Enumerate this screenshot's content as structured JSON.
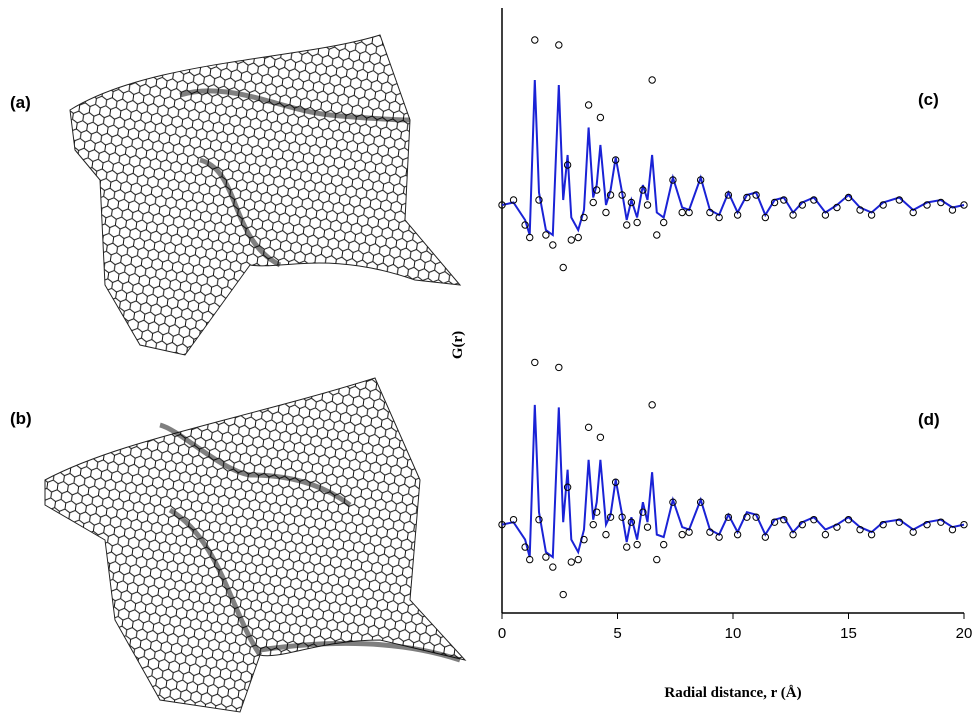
{
  "panels": [
    {
      "label": "(a)"
    },
    {
      "label": "(b)"
    }
  ],
  "chart_data": [
    {
      "type": "line",
      "label": "(c)",
      "ylabel": "G(r)",
      "x": [
        0,
        0.5,
        1,
        1.2,
        1.42,
        1.6,
        1.9,
        2.2,
        2.46,
        2.65,
        2.84,
        3.0,
        3.3,
        3.55,
        3.75,
        3.95,
        4.1,
        4.26,
        4.5,
        4.7,
        4.92,
        5.2,
        5.4,
        5.6,
        5.85,
        6.1,
        6.3,
        6.5,
        6.7,
        7.0,
        7.4,
        7.8,
        8.1,
        8.6,
        9.0,
        9.4,
        9.8,
        10.2,
        10.6,
        11.0,
        11.4,
        11.8,
        12.2,
        12.6,
        13.0,
        13.5,
        14.0,
        14.5,
        15.0,
        15.5,
        16.0,
        16.5,
        17.2,
        17.8,
        18.4,
        19.0,
        19.5,
        20.0
      ],
      "series": [
        {
          "style": "line",
          "color": "#1a22d6",
          "values": [
            0,
            0.1,
            -0.6,
            -1.2,
            5.0,
            0.5,
            -1.0,
            -1.2,
            4.8,
            0.2,
            2.0,
            -0.5,
            -1.0,
            -0.2,
            3.1,
            0.3,
            0.8,
            2.4,
            0.0,
            0.6,
            1.9,
            0.5,
            -0.6,
            0.2,
            -0.5,
            0.8,
            0.2,
            2.0,
            -0.3,
            -0.5,
            1.1,
            -0.1,
            -0.2,
            1.1,
            -0.2,
            -0.4,
            0.5,
            -0.3,
            0.4,
            0.5,
            -0.4,
            0.2,
            0.3,
            -0.3,
            0.1,
            0.3,
            -0.3,
            0.0,
            0.4,
            -0.1,
            -0.3,
            0.1,
            0.3,
            -0.2,
            0.1,
            0.2,
            -0.1,
            0.0
          ]
        },
        {
          "style": "markers",
          "color": "#000000",
          "values": [
            0,
            0.2,
            -0.8,
            -1.3,
            6.6,
            0.2,
            -1.2,
            -1.6,
            6.4,
            -2.5,
            1.6,
            -1.4,
            -1.3,
            -0.5,
            4.0,
            0.1,
            0.6,
            3.5,
            -0.3,
            0.4,
            1.8,
            0.4,
            -0.8,
            0.1,
            -0.7,
            0.6,
            0.0,
            5.0,
            -1.2,
            -0.7,
            1.0,
            -0.3,
            -0.3,
            1.0,
            -0.3,
            -0.5,
            0.4,
            -0.4,
            0.3,
            0.4,
            -0.5,
            0.1,
            0.2,
            -0.4,
            0.0,
            0.2,
            -0.4,
            -0.1,
            0.3,
            -0.2,
            -0.4,
            0.0,
            0.2,
            -0.3,
            0.0,
            0.1,
            -0.2,
            0.0
          ]
        }
      ],
      "xlim": [
        0,
        20
      ],
      "ylim": [
        -3.8,
        7.8
      ]
    },
    {
      "type": "line",
      "label": "(d)",
      "xlabel": "Radial distance, r (Å)",
      "x": [
        0,
        0.5,
        1,
        1.2,
        1.42,
        1.6,
        1.9,
        2.2,
        2.46,
        2.65,
        2.84,
        3.0,
        3.3,
        3.55,
        3.75,
        3.95,
        4.1,
        4.26,
        4.5,
        4.7,
        4.92,
        5.2,
        5.4,
        5.6,
        5.85,
        6.1,
        6.3,
        6.5,
        6.7,
        7.0,
        7.4,
        7.8,
        8.1,
        8.6,
        9.0,
        9.4,
        9.8,
        10.2,
        10.6,
        11.0,
        11.4,
        11.8,
        12.2,
        12.6,
        13.0,
        13.5,
        14.0,
        14.5,
        15.0,
        15.5,
        16.0,
        16.5,
        17.2,
        17.8,
        18.4,
        19.0,
        19.5,
        20.0
      ],
      "series": [
        {
          "style": "line",
          "color": "#1a22d6",
          "values": [
            0,
            0.1,
            -0.6,
            -1.3,
            4.8,
            0.5,
            -1.1,
            -1.3,
            4.7,
            0.1,
            2.2,
            -0.6,
            -1.1,
            -0.2,
            2.6,
            0.2,
            0.9,
            2.6,
            0.0,
            0.4,
            1.8,
            0.4,
            -0.7,
            0.3,
            -0.6,
            0.9,
            0.1,
            2.1,
            -0.4,
            -0.5,
            1.0,
            -0.1,
            -0.2,
            1.0,
            -0.2,
            -0.4,
            0.4,
            -0.3,
            0.5,
            0.4,
            -0.4,
            0.2,
            0.3,
            -0.3,
            0.1,
            0.3,
            -0.2,
            0.0,
            0.3,
            -0.1,
            -0.3,
            0.1,
            0.2,
            -0.2,
            0.1,
            0.2,
            -0.1,
            0.0
          ]
        },
        {
          "style": "markers",
          "color": "#000000",
          "values": [
            0,
            0.2,
            -0.9,
            -1.4,
            6.5,
            0.2,
            -1.3,
            -1.7,
            6.3,
            -2.8,
            1.5,
            -1.5,
            -1.4,
            -0.6,
            3.9,
            0.0,
            0.5,
            3.5,
            -0.4,
            0.3,
            1.7,
            0.3,
            -0.9,
            0.1,
            -0.8,
            0.5,
            -0.1,
            4.8,
            -1.4,
            -0.8,
            0.9,
            -0.4,
            -0.3,
            0.9,
            -0.3,
            -0.5,
            0.3,
            -0.4,
            0.3,
            0.3,
            -0.5,
            0.1,
            0.2,
            -0.4,
            0.0,
            0.2,
            -0.4,
            -0.1,
            0.2,
            -0.2,
            -0.4,
            0.0,
            0.1,
            -0.3,
            0.0,
            0.1,
            -0.2,
            0.0
          ]
        }
      ],
      "xlim": [
        0,
        20
      ],
      "xticks": [
        0,
        5,
        10,
        15,
        20
      ],
      "ylim": [
        -3.5,
        8.2
      ]
    }
  ]
}
